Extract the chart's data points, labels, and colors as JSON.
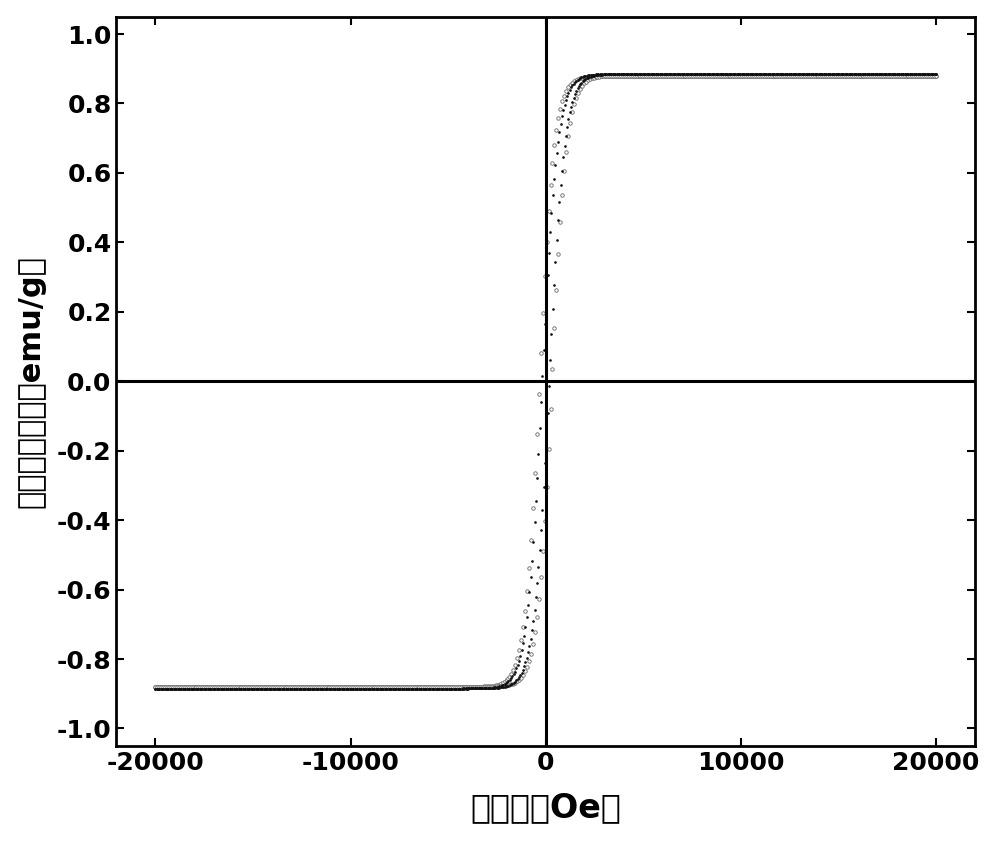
{
  "title": "",
  "xlabel": "矫顼力（Oe）",
  "ylabel": "饱和磁化强度（emu/g）",
  "xlim": [
    -22000,
    22000
  ],
  "ylim": [
    -1.05,
    1.05
  ],
  "xticks": [
    -20000,
    -10000,
    0,
    10000,
    20000
  ],
  "yticks": [
    -1.0,
    -0.8,
    -0.6,
    -0.4,
    -0.2,
    0.0,
    0.2,
    0.4,
    0.6,
    0.8,
    1.0
  ],
  "hline_y": 0.0,
  "vline_x": 0.0,
  "bg_color": "#ffffff",
  "xlabel_fontsize": 24,
  "ylabel_fontsize": 22,
  "tick_fontsize": 18,
  "saturation": 0.9,
  "coercivity_upper": 250,
  "coercivity_lower": 250,
  "steepness": 800,
  "n_points_outer": 400,
  "n_points_inner": 600
}
